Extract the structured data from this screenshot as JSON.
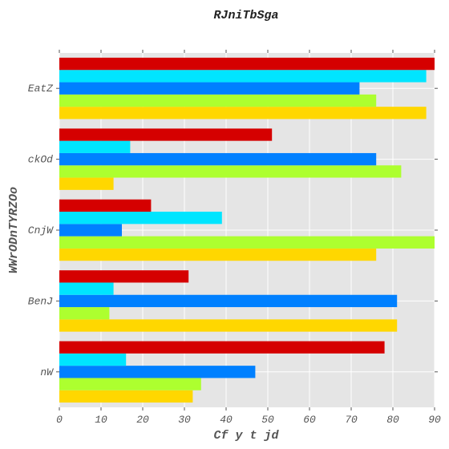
{
  "chart_data": {
    "type": "bar",
    "orientation": "horizontal",
    "title": "RJniTbSga",
    "xlabel": "Cf y t jd",
    "ylabel": "WWrODnTYRZOo",
    "categories": [
      "nW",
      "BenJ",
      "CnjW",
      "ckOd",
      "EatZ"
    ],
    "xlim": [
      0,
      90
    ],
    "xticks": [
      0,
      10,
      20,
      30,
      40,
      50,
      60,
      70,
      80,
      90
    ],
    "grid": true,
    "series": [
      {
        "color": "#ffd700",
        "values": [
          32,
          81,
          76,
          13,
          88
        ]
      },
      {
        "color": "#adff2f",
        "values": [
          34,
          12,
          90,
          82,
          76
        ]
      },
      {
        "color": "#0080ff",
        "values": [
          47,
          81,
          15,
          76,
          72
        ]
      },
      {
        "color": "#00e5ff",
        "values": [
          16,
          13,
          39,
          17,
          88
        ]
      },
      {
        "color": "#d50000",
        "values": [
          78,
          31,
          22,
          51,
          90
        ]
      }
    ]
  }
}
